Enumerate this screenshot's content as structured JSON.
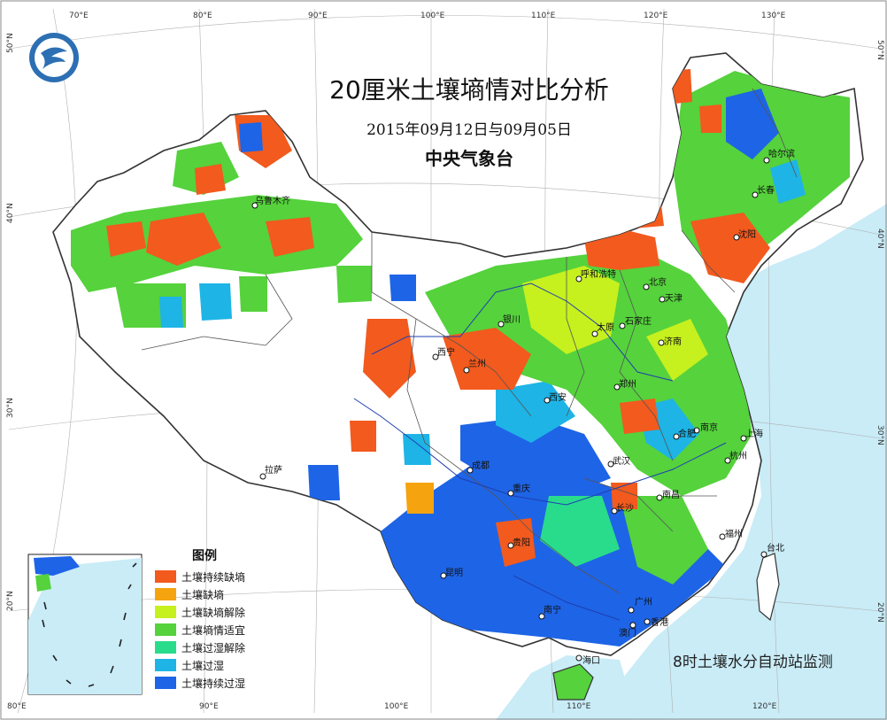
{
  "map": {
    "title": "20厘米土壤墒情对比分析",
    "subtitle": "2015年09月12日与09月05日",
    "organization": "中央气象台",
    "note": "8时土壤水分自动站监测",
    "top_lon_labels": [
      "70°E",
      "80°E",
      "90°E",
      "100°E",
      "110°E",
      "120°E",
      "130°E"
    ],
    "bottom_lon_labels": [
      "80°E",
      "90°E",
      "100°E",
      "110°E",
      "120°E"
    ],
    "left_lat_labels": [
      "50°N",
      "40°N",
      "30°N",
      "20°N"
    ],
    "right_lat_labels": [
      "50°N",
      "40°N",
      "30°N",
      "20°N"
    ],
    "cities": [
      {
        "name": "乌鲁木齐"
      },
      {
        "name": "呼和浩特"
      },
      {
        "name": "北京"
      },
      {
        "name": "天津"
      },
      {
        "name": "银川"
      },
      {
        "name": "太原"
      },
      {
        "name": "石家庄"
      },
      {
        "name": "西宁"
      },
      {
        "name": "兰州"
      },
      {
        "name": "济南"
      },
      {
        "name": "郑州"
      },
      {
        "name": "西安"
      },
      {
        "name": "哈尔滨"
      },
      {
        "name": "长春"
      },
      {
        "name": "沈阳"
      },
      {
        "name": "南京"
      },
      {
        "name": "合肥"
      },
      {
        "name": "上海"
      },
      {
        "name": "成都"
      },
      {
        "name": "武汉"
      },
      {
        "name": "杭州"
      },
      {
        "name": "拉萨"
      },
      {
        "name": "重庆"
      },
      {
        "name": "长沙"
      },
      {
        "name": "南昌"
      },
      {
        "name": "福州"
      },
      {
        "name": "台北"
      },
      {
        "name": "贵阳"
      },
      {
        "name": "昆明"
      },
      {
        "name": "广州"
      },
      {
        "name": "南宁"
      },
      {
        "name": "香港"
      },
      {
        "name": "澳门"
      },
      {
        "name": "海口"
      }
    ]
  },
  "legend": {
    "title": "图例",
    "items": [
      {
        "label": "土壤持续缺墒",
        "color": "#f25a1e"
      },
      {
        "label": "土壤缺墒",
        "color": "#f5a30f"
      },
      {
        "label": "土壤缺墒解除",
        "color": "#c6f01e"
      },
      {
        "label": "土壤墒情适宜",
        "color": "#55d23c"
      },
      {
        "label": "土壤过湿解除",
        "color": "#28dc8c"
      },
      {
        "label": "土壤过湿",
        "color": "#1eb4e6"
      },
      {
        "label": "土壤持续过湿",
        "color": "#1e64e6"
      }
    ]
  },
  "colors": {
    "sea": "#c9ecf7",
    "land": "#ffffff",
    "border": "#333333"
  },
  "icons": {
    "logo": "cma-logo-icon",
    "city": "city-marker-icon"
  }
}
